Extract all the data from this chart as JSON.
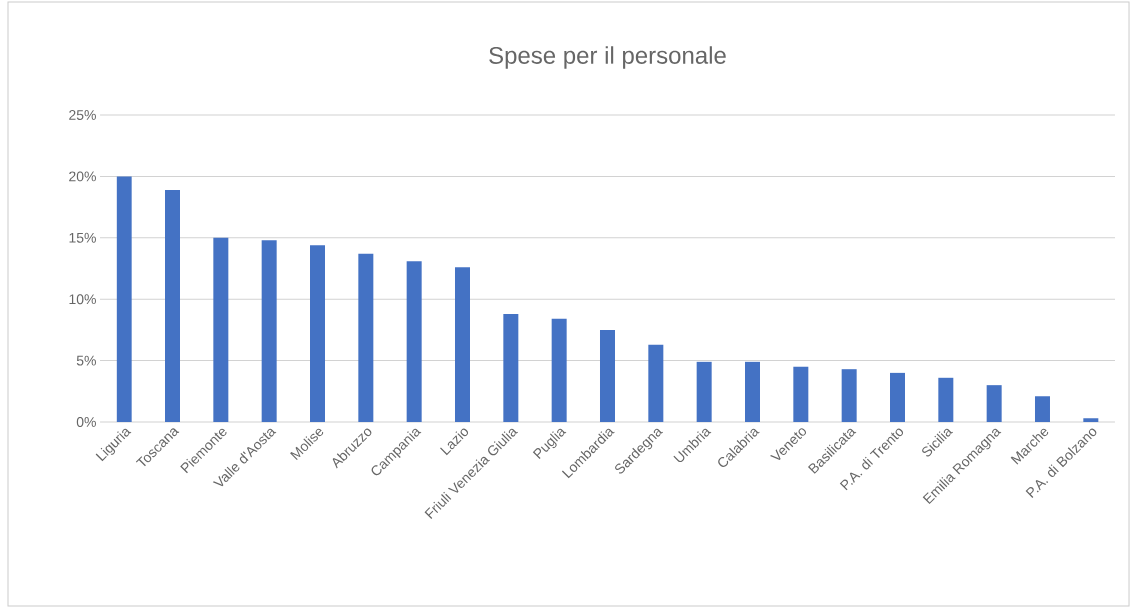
{
  "chart_data": {
    "type": "bar",
    "title": "Spese per il personale",
    "categories": [
      "Liguria",
      "Toscana",
      "Piemonte",
      "Valle d'Aosta",
      "Molise",
      "Abruzzo",
      "Campania",
      "Lazio",
      "Friuli Venezia Giulia",
      "Puglia",
      "Lombardia",
      "Sardegna",
      "Umbria",
      "Calabria",
      "Veneto",
      "Basilicata",
      "P.A. di Trento",
      "Sicilia",
      "Emilia Romagna",
      "Marche",
      "P.A. di Bolzano"
    ],
    "values": [
      20.0,
      18.9,
      15.0,
      14.8,
      14.4,
      13.7,
      13.1,
      12.6,
      8.8,
      8.4,
      7.5,
      6.3,
      4.9,
      4.9,
      4.5,
      4.3,
      4.0,
      3.6,
      3.0,
      2.1,
      0.3
    ],
    "color": "#4472c4",
    "ylim": [
      0,
      25
    ],
    "yticks": [
      {
        "value": 0,
        "label": "0%"
      },
      {
        "value": 5,
        "label": "5%"
      },
      {
        "value": 10,
        "label": "10%"
      },
      {
        "value": 15,
        "label": "15%"
      },
      {
        "value": 20,
        "label": "20%"
      },
      {
        "value": 25,
        "label": "25%"
      }
    ],
    "grid": "y"
  }
}
